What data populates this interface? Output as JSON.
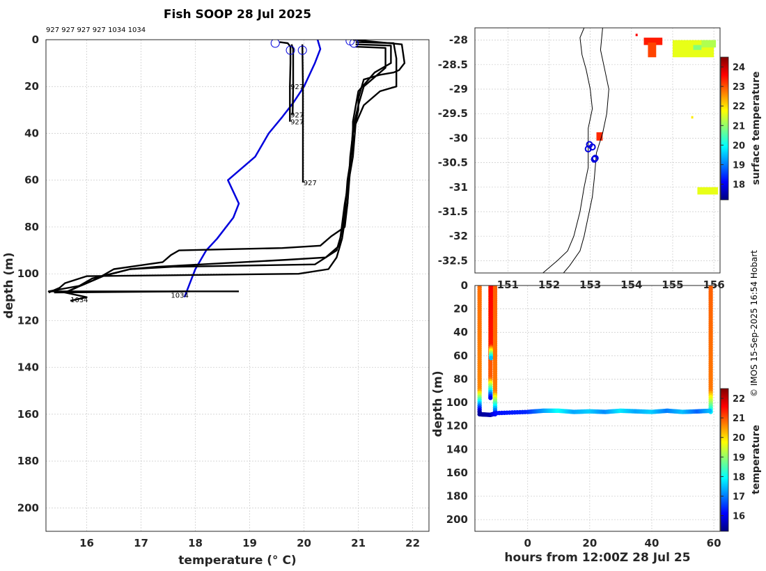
{
  "header": {
    "title": "Fish SOOP 28 Jul 2025",
    "cast_ids_line": "927 927 927 927 1034 1034",
    "credit": "© IMOS 15-Sep-2025 16:54 Hobart"
  },
  "colors": {
    "profile": "#000000",
    "highlight_profile": "#0000dd",
    "marker": "#0000dd"
  },
  "chart_data": [
    {
      "type": "line",
      "title": "Fish SOOP 28 Jul 2025",
      "xlabel": "temperature (° C)",
      "ylabel": "depth (m)",
      "xlim": [
        15.25,
        22.3
      ],
      "ylim": [
        210,
        0
      ],
      "xticks": [
        16,
        17,
        18,
        19,
        20,
        21,
        22
      ],
      "yticks": [
        0,
        20,
        40,
        60,
        80,
        100,
        120,
        140,
        160,
        180,
        200
      ],
      "grid": true,
      "profile_labels": [
        {
          "text": "927",
          "x": 19.75,
          "y": 20
        },
        {
          "text": "927",
          "x": 19.75,
          "y": 32
        },
        {
          "text": "927",
          "x": 19.75,
          "y": 35
        },
        {
          "text": "927",
          "x": 19.99,
          "y": 61
        },
        {
          "text": "1034",
          "x": 15.7,
          "y": 111
        },
        {
          "text": "1034",
          "x": 17.55,
          "y": 109
        }
      ],
      "series": [
        {
          "style": "highlight",
          "points": [
            [
              20.25,
              0
            ],
            [
              20.3,
              4
            ],
            [
              20.2,
              10
            ],
            [
              20,
              20
            ],
            [
              19.8,
              27
            ],
            [
              19.6,
              33
            ],
            [
              19.35,
              40
            ],
            [
              19.1,
              50
            ],
            [
              18.6,
              60
            ],
            [
              18.8,
              70
            ],
            [
              18.7,
              76
            ],
            [
              18.4,
              85
            ],
            [
              18.2,
              90
            ],
            [
              18.0,
              98
            ],
            [
              17.9,
              104
            ],
            [
              17.8,
              110
            ]
          ]
        },
        {
          "style": "black",
          "points": [
            [
              19.55,
              1
            ],
            [
              19.7,
              1.5
            ],
            [
              19.75,
              3
            ],
            [
              19.75,
              10
            ],
            [
              19.74,
              20
            ],
            [
              19.74,
              35
            ]
          ]
        },
        {
          "style": "black",
          "points": [
            [
              19.77,
              2
            ],
            [
              19.8,
              4
            ],
            [
              19.8,
              20
            ],
            [
              19.79,
              32
            ]
          ]
        },
        {
          "style": "black",
          "points": [
            [
              19.97,
              2
            ],
            [
              19.98,
              20
            ],
            [
              19.98,
              40
            ],
            [
              19.98,
              61
            ]
          ]
        },
        {
          "style": "black",
          "points": [
            [
              20.9,
              0
            ],
            [
              21.8,
              2
            ],
            [
              21.85,
              10
            ],
            [
              21.75,
              13
            ],
            [
              21.65,
              14
            ],
            [
              21.4,
              15
            ],
            [
              21.1,
              17
            ],
            [
              21.0,
              25
            ],
            [
              21.0,
              30
            ],
            [
              20.95,
              35
            ],
            [
              20.9,
              40
            ],
            [
              20.85,
              50
            ],
            [
              20.8,
              70
            ],
            [
              20.7,
              85
            ],
            [
              20.6,
              93
            ],
            [
              20.45,
              98
            ],
            [
              19.9,
              100
            ],
            [
              16.0,
              101
            ],
            [
              15.6,
              104
            ],
            [
              15.5,
              106
            ],
            [
              15.3,
              108
            ]
          ]
        },
        {
          "style": "black",
          "points": [
            [
              20.95,
              1
            ],
            [
              21.65,
              1.5
            ],
            [
              21.7,
              8
            ],
            [
              21.7,
              20
            ],
            [
              21.4,
              22
            ],
            [
              21.1,
              28
            ],
            [
              20.95,
              36
            ],
            [
              20.9,
              50
            ],
            [
              20.75,
              70
            ],
            [
              20.65,
              88
            ],
            [
              20.4,
              93
            ],
            [
              19.7,
              94
            ],
            [
              17.3,
              97
            ],
            [
              16.8,
              98
            ],
            [
              16.1,
              102
            ],
            [
              15.8,
              106
            ],
            [
              15.6,
              108
            ]
          ]
        },
        {
          "style": "black",
          "points": [
            [
              20.95,
              2
            ],
            [
              21.6,
              2.5
            ],
            [
              21.6,
              10
            ],
            [
              21.3,
              14
            ],
            [
              21.0,
              22
            ],
            [
              20.9,
              35
            ],
            [
              20.9,
              45
            ],
            [
              20.8,
              60
            ],
            [
              20.75,
              75
            ],
            [
              20.7,
              82
            ],
            [
              20.6,
              90
            ],
            [
              20.2,
              96
            ],
            [
              17.6,
              97
            ],
            [
              16.8,
              98
            ],
            [
              16.3,
              101
            ],
            [
              15.9,
              105
            ],
            [
              15.3,
              107.5
            ],
            [
              18.8,
              107.5
            ]
          ]
        },
        {
          "style": "black",
          "points": [
            [
              20.95,
              3
            ],
            [
              21.5,
              3.5
            ],
            [
              21.5,
              12
            ],
            [
              21.3,
              16
            ],
            [
              21.1,
              20
            ],
            [
              21.0,
              28
            ],
            [
              20.9,
              38
            ],
            [
              20.85,
              55
            ],
            [
              20.8,
              70
            ],
            [
              20.75,
              80
            ],
            [
              20.5,
              84
            ],
            [
              20.3,
              88
            ],
            [
              19.6,
              89
            ],
            [
              17.7,
              90
            ],
            [
              17.55,
              92
            ],
            [
              17.4,
              95
            ],
            [
              16.5,
              98
            ],
            [
              16.2,
              102
            ],
            [
              15.6,
              108
            ],
            [
              16.0,
              110
            ],
            [
              15.8,
              111
            ],
            [
              15.7,
              111.5
            ]
          ]
        },
        {
          "style": "black",
          "points": [
            [
              15.4,
              108
            ],
            [
              17.9,
              107.5
            ]
          ]
        }
      ],
      "markers": [
        [
          19.47,
          1.5
        ],
        [
          19.75,
          4.5
        ],
        [
          19.97,
          4.5
        ],
        [
          20.85,
          0.5
        ],
        [
          20.92,
          1.5
        ]
      ]
    },
    {
      "type": "heatmap",
      "title": "",
      "xlabel": "",
      "ylabel": "",
      "colorbar_label": "surface temperature",
      "xlim": [
        150.2,
        156.15
      ],
      "ylim": [
        -32.75,
        -27.75
      ],
      "xticks": [
        151,
        152,
        153,
        154,
        155,
        156
      ],
      "yticks": [
        -28,
        -28.5,
        -29,
        -29.5,
        -30,
        -30.5,
        -31,
        -31.5,
        -32,
        -32.5
      ],
      "ytick_labels": [
        "-28",
        "-28.5",
        "-29",
        "-29.5",
        "-30",
        "-30.5",
        "-31",
        "-31.5",
        "-32",
        "-32.5"
      ],
      "colorbar": {
        "min": 17.2,
        "max": 24.5,
        "ticks": [
          18,
          19,
          20,
          21,
          22,
          23,
          24
        ]
      },
      "sst_patches": [
        {
          "lon": 154.3,
          "lat": -27.95,
          "lon2": 154.75,
          "lat2": -28.1,
          "t": 23.4
        },
        {
          "lon": 154.4,
          "lat": -28.05,
          "lon2": 154.6,
          "lat2": -28.35,
          "t": 23.1
        },
        {
          "lon": 154.1,
          "lat": -27.87,
          "lon2": 154.15,
          "lat2": -27.92,
          "t": 23.6
        },
        {
          "lon": 155.0,
          "lat": -28.0,
          "lon2": 156.0,
          "lat2": -28.35,
          "t": 21.6
        },
        {
          "lon": 155.7,
          "lat": -28.0,
          "lon2": 156.05,
          "lat2": -28.15,
          "t": 21.2
        },
        {
          "lon": 155.5,
          "lat": -28.1,
          "lon2": 155.7,
          "lat2": -28.2,
          "t": 20.9
        },
        {
          "lon": 155.6,
          "lat": -31.0,
          "lon2": 156.1,
          "lat2": -31.15,
          "t": 21.6
        },
        {
          "lon": 155.45,
          "lat": -29.55,
          "lon2": 155.5,
          "lat2": -29.6,
          "t": 21.9
        },
        {
          "lon": 153.15,
          "lat": -29.88,
          "lon2": 153.3,
          "lat2": -30.05,
          "t": 23.3
        }
      ],
      "coastline": [
        [
          152.85,
          -27.75
        ],
        [
          152.75,
          -27.95
        ],
        [
          152.8,
          -28.3
        ],
        [
          152.9,
          -28.6
        ],
        [
          153.0,
          -29.0
        ],
        [
          153.05,
          -29.4
        ],
        [
          152.95,
          -29.8
        ],
        [
          152.95,
          -30.2
        ],
        [
          152.95,
          -30.6
        ],
        [
          152.85,
          -31.0
        ],
        [
          152.75,
          -31.5
        ],
        [
          152.6,
          -32.0
        ],
        [
          152.45,
          -32.3
        ],
        [
          152.2,
          -32.5
        ],
        [
          151.85,
          -32.75
        ]
      ],
      "isobath": [
        [
          153.3,
          -27.75
        ],
        [
          153.25,
          -28.2
        ],
        [
          153.35,
          -28.6
        ],
        [
          153.45,
          -29.0
        ],
        [
          153.4,
          -29.5
        ],
        [
          153.3,
          -29.9
        ],
        [
          153.15,
          -30.3
        ],
        [
          153.1,
          -30.8
        ],
        [
          153.05,
          -31.2
        ],
        [
          152.95,
          -31.6
        ],
        [
          152.85,
          -32.0
        ],
        [
          152.75,
          -32.3
        ],
        [
          152.5,
          -32.6
        ],
        [
          152.35,
          -32.75
        ]
      ],
      "track_markers": [
        [
          152.98,
          -30.13
        ],
        [
          153.05,
          -30.18
        ],
        [
          152.95,
          -30.22
        ],
        [
          153.12,
          -30.41
        ],
        [
          153.1,
          -30.43
        ]
      ]
    },
    {
      "type": "scatter",
      "title": "",
      "xlabel": "hours from 12:00Z 28 Jul 25",
      "ylabel": "depth (m)",
      "colorbar_label": "temperature",
      "xlim": [
        -17,
        62
      ],
      "ylim": [
        210,
        0
      ],
      "xticks": [
        0,
        20,
        40,
        60
      ],
      "yticks": [
        0,
        20,
        40,
        60,
        80,
        100,
        120,
        140,
        160,
        180,
        200
      ],
      "colorbar": {
        "min": 15.2,
        "max": 22.5,
        "ticks": [
          16,
          17,
          18,
          19,
          20,
          21,
          22
        ]
      },
      "casts": [
        {
          "x": -15.5,
          "surface_t": 20.8,
          "bottom_t": 15.5,
          "depth": 108
        },
        {
          "x": -12.0,
          "surface_t": 21.1,
          "bottom_t": 16.0,
          "depth": 96
        },
        {
          "x": -11.8,
          "surface_t": 21.6,
          "bottom_t": 17.5,
          "depth": 62
        },
        {
          "x": -10.5,
          "surface_t": 20.9,
          "bottom_t": 16.2,
          "depth": 110
        },
        {
          "x": 59.0,
          "surface_t": 20.9,
          "bottom_t": 17.8,
          "depth": 108
        }
      ],
      "bottom_track": [
        [
          -15.5,
          110
        ],
        [
          -12,
          110.5
        ],
        [
          -10,
          109
        ],
        [
          0,
          108
        ],
        [
          5,
          107
        ],
        [
          10,
          107
        ],
        [
          15,
          108
        ],
        [
          20,
          107.5
        ],
        [
          25,
          108
        ],
        [
          30,
          107
        ],
        [
          35,
          107.5
        ],
        [
          40,
          108
        ],
        [
          45,
          107
        ],
        [
          50,
          108
        ],
        [
          55,
          107.5
        ],
        [
          59,
          107
        ]
      ],
      "bottom_track_t": [
        15.4,
        15.5,
        16.2,
        16.4,
        17.2,
        18.0,
        17.3,
        17.6,
        17.1,
        17.8,
        17.3,
        17.6,
        17.0,
        17.5,
        16.8,
        17.5
      ]
    }
  ]
}
